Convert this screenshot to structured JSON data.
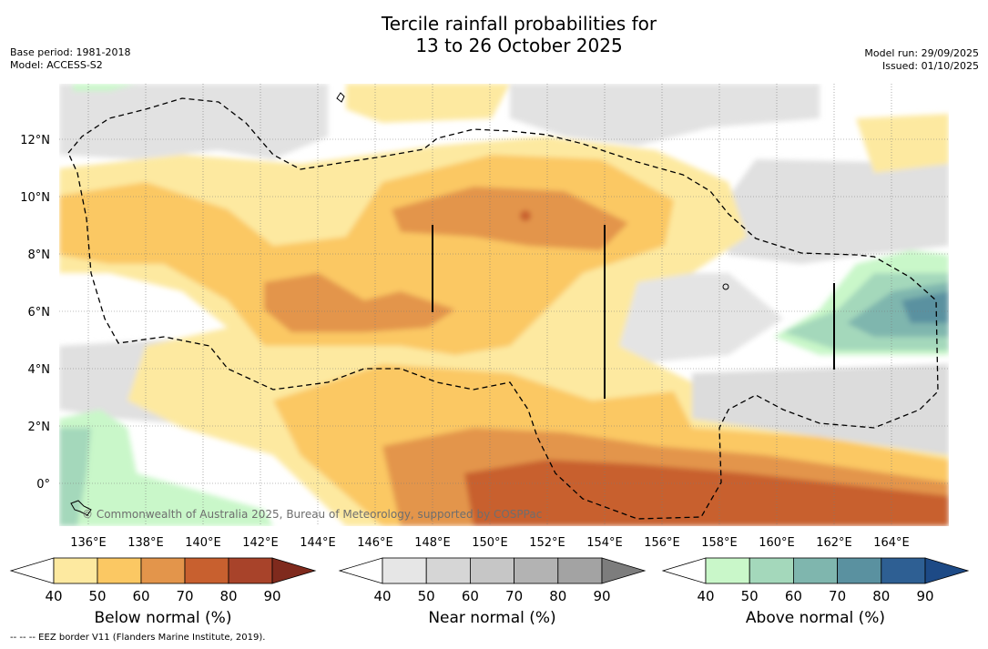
{
  "title_line1": "Tercile rainfall probabilities for",
  "title_line2": "13 to 26 October 2025",
  "meta_left": {
    "base_period": "Base period: 1981-2018",
    "model": "Model: ACCESS-S2"
  },
  "meta_right": {
    "model_run": "Model run: 29/09/2025",
    "issued": "Issued: 01/10/2025"
  },
  "map": {
    "lon_ticks": [
      "136°E",
      "138°E",
      "140°E",
      "142°E",
      "144°E",
      "146°E",
      "148°E",
      "150°E",
      "152°E",
      "154°E",
      "156°E",
      "158°E",
      "160°E",
      "162°E",
      "164°E"
    ],
    "lat_ticks": [
      "12°N",
      "10°N",
      "8°N",
      "6°N",
      "4°N",
      "2°N",
      "0°"
    ],
    "credit": "© Commonwealth of Australia 2025, Bureau of Meteorology, supported by COSPPac",
    "eez_note": "--  --  -- EEZ border V11 (Flanders Marine Institute, 2019)."
  },
  "colorbars": [
    {
      "id": "below",
      "title": "Below normal (%)",
      "ticks": [
        "40",
        "50",
        "60",
        "70",
        "80",
        "90"
      ],
      "colors": [
        "#ffffff",
        "#fde9a0",
        "#fbc863",
        "#e3954b",
        "#c8602f",
        "#a8432a",
        "#7f2a1d"
      ]
    },
    {
      "id": "near",
      "title": "Near normal (%)",
      "ticks": [
        "40",
        "50",
        "60",
        "70",
        "80",
        "90"
      ],
      "colors": [
        "#ffffff",
        "#e6e6e6",
        "#d6d6d6",
        "#c6c6c6",
        "#b3b3b3",
        "#a3a3a3",
        "#7d7d7d"
      ]
    },
    {
      "id": "above",
      "title": "Above normal (%)",
      "ticks": [
        "40",
        "50",
        "60",
        "70",
        "80",
        "90"
      ],
      "colors": [
        "#ffffff",
        "#c9f7c9",
        "#a4d8bb",
        "#7fb6ae",
        "#5a91a0",
        "#2e5f93",
        "#1d4a86"
      ]
    }
  ]
}
